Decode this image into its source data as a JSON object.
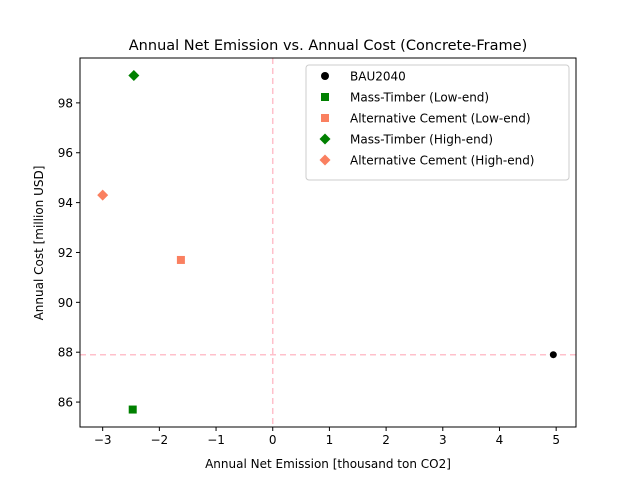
{
  "chart_data": {
    "type": "scatter",
    "title": "Annual Net Emission vs. Annual Cost (Concrete-Frame)",
    "xlabel": "Annual Net Emission [thousand ton CO2]",
    "ylabel": "Annual Cost [million USD]",
    "xlim": [
      -3.4,
      5.35
    ],
    "ylim": [
      85.0,
      99.8
    ],
    "xticks": [
      -3,
      -2,
      -1,
      0,
      1,
      2,
      3,
      4,
      5
    ],
    "yticks": [
      86,
      88,
      90,
      92,
      94,
      96,
      98
    ],
    "grid": false,
    "legend_position": "top-right",
    "reference_lines": {
      "x": 0,
      "y": 87.9,
      "color": "#ffc0cb",
      "style": "dashed"
    },
    "series": [
      {
        "name": "BAU2040",
        "marker": "circle",
        "color": "#000000",
        "x": 4.95,
        "y": 87.9
      },
      {
        "name": "Mass-Timber (Low-end)",
        "marker": "square",
        "color": "#008000",
        "x": -2.47,
        "y": 85.7
      },
      {
        "name": "Alternative Cement (Low-end)",
        "marker": "square",
        "color": "#fa8060",
        "x": -1.62,
        "y": 91.7
      },
      {
        "name": "Mass-Timber (High-end)",
        "marker": "diamond",
        "color": "#008000",
        "x": -2.45,
        "y": 99.1
      },
      {
        "name": "Alternative Cement (High-end)",
        "marker": "diamond",
        "color": "#fa8060",
        "x": -3.0,
        "y": 94.3
      }
    ]
  }
}
